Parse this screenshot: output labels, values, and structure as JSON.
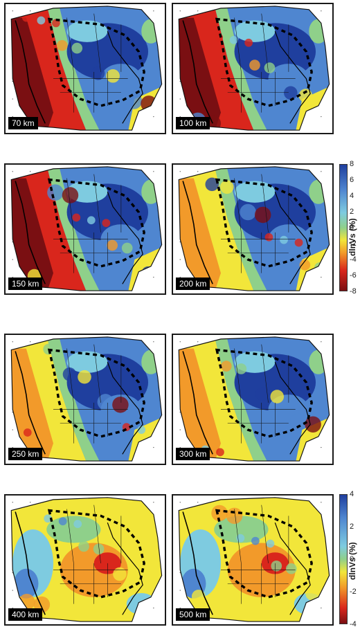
{
  "panels": [
    {
      "depth": "70 km",
      "scale": "a"
    },
    {
      "depth": "100 km",
      "scale": "a"
    },
    {
      "depth": "150 km",
      "scale": "a"
    },
    {
      "depth": "200 km",
      "scale": "a"
    },
    {
      "depth": "250 km",
      "scale": "a"
    },
    {
      "depth": "300 km",
      "scale": "a"
    },
    {
      "depth": "400 km",
      "scale": "b"
    },
    {
      "depth": "500 km",
      "scale": "b"
    }
  ],
  "colorbar_upper": {
    "title": "dlnVs (%)",
    "ticks": [
      "8",
      "6",
      "4",
      "2",
      "0",
      "-2",
      "-4",
      "-6",
      "-8"
    ],
    "range": [
      -8,
      8
    ]
  },
  "colorbar_lower": {
    "title": "dlnVs (%)",
    "ticks": [
      "4",
      "2",
      "0",
      "-2",
      "-4"
    ],
    "range": [
      -4,
      4
    ]
  },
  "colors": {
    "fast_strong": "#1f3f9e",
    "fast": "#4f86d0",
    "fast_weak": "#7ecbe0",
    "neutral": "#8fd08a",
    "slow_weak": "#f2e63a",
    "slow": "#f29a2a",
    "slow_strong": "#d9261c",
    "slow_extreme": "#7a0f12"
  }
}
